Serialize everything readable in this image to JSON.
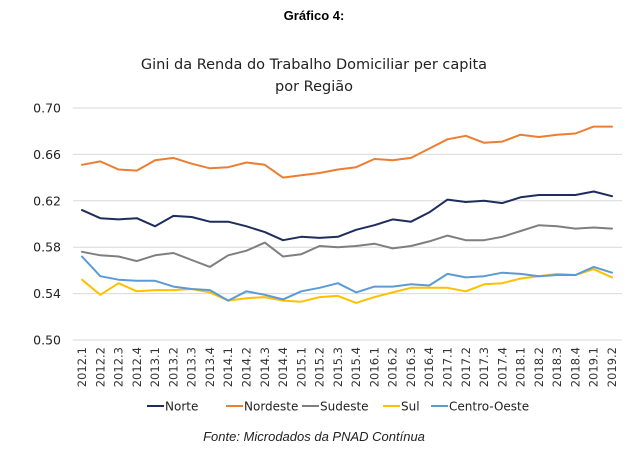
{
  "heading": "Gráfico 4:",
  "source": "Fonte: Microdados da PNAD Contínua",
  "chart_data": {
    "type": "line",
    "title": [
      "Gini da Renda do Trabalho Domiciliar per capita",
      "por Região"
    ],
    "xlabel": "",
    "ylabel": "",
    "ylim": [
      0.5,
      0.7
    ],
    "yticks": [
      "0.50",
      "0.54",
      "0.58",
      "0.62",
      "0.66",
      "0.70"
    ],
    "ytick_values": [
      0.5,
      0.54,
      0.58,
      0.62,
      0.66,
      0.7
    ],
    "grid": true,
    "legend_position": "bottom",
    "categories": [
      "2012.1",
      "2012.2",
      "2012.3",
      "2012.4",
      "2013.1",
      "2013.2",
      "2013.3",
      "2013.4",
      "2014.1",
      "2014.2",
      "2014.3",
      "2014.4",
      "2015.1",
      "2015.2",
      "2015.3",
      "2015.4",
      "2016.1",
      "2016.2",
      "2016.3",
      "2016.4",
      "2017.1",
      "2017.2",
      "2017.3",
      "2017.4",
      "2018.1",
      "2018.2",
      "2018.3",
      "2018.4",
      "2019.1",
      "2019.2"
    ],
    "series": [
      {
        "name": "Norte",
        "color": "#1f2d5c",
        "values": [
          0.612,
          0.605,
          0.604,
          0.605,
          0.598,
          0.607,
          0.606,
          0.602,
          0.602,
          0.598,
          0.593,
          0.586,
          0.589,
          0.588,
          0.589,
          0.595,
          0.599,
          0.604,
          0.602,
          0.61,
          0.621,
          0.619,
          0.62,
          0.618,
          0.623,
          0.625,
          0.625,
          0.625,
          0.628,
          0.624
        ]
      },
      {
        "name": "Nordeste",
        "color": "#ed7d31",
        "values": [
          0.651,
          0.654,
          0.647,
          0.646,
          0.655,
          0.657,
          0.652,
          0.648,
          0.649,
          0.653,
          0.651,
          0.64,
          0.642,
          0.644,
          0.647,
          0.649,
          0.656,
          0.655,
          0.657,
          0.665,
          0.673,
          0.676,
          0.67,
          0.671,
          0.677,
          0.675,
          0.677,
          0.678,
          0.684,
          0.684
        ]
      },
      {
        "name": "Sudeste",
        "color": "#7f7f7f",
        "values": [
          0.576,
          0.573,
          0.572,
          0.568,
          0.573,
          0.575,
          0.569,
          0.563,
          0.573,
          0.577,
          0.584,
          0.572,
          0.574,
          0.581,
          0.58,
          0.581,
          0.583,
          0.579,
          0.581,
          0.585,
          0.59,
          0.586,
          0.586,
          0.589,
          0.594,
          0.599,
          0.598,
          0.596,
          0.597,
          0.596
        ]
      },
      {
        "name": "Sul",
        "color": "#ffc000",
        "values": [
          0.552,
          0.539,
          0.549,
          0.542,
          0.543,
          0.543,
          0.544,
          0.541,
          0.534,
          0.536,
          0.537,
          0.534,
          0.533,
          0.537,
          0.538,
          0.532,
          0.537,
          0.541,
          0.545,
          0.545,
          0.545,
          0.542,
          0.548,
          0.549,
          0.553,
          0.555,
          0.557,
          0.556,
          0.561,
          0.554
        ]
      },
      {
        "name": "Centro-Oeste",
        "color": "#5b9bd5",
        "values": [
          0.572,
          0.555,
          0.552,
          0.551,
          0.551,
          0.546,
          0.544,
          0.543,
          0.534,
          0.542,
          0.539,
          0.535,
          0.542,
          0.545,
          0.549,
          0.541,
          0.546,
          0.546,
          0.548,
          0.547,
          0.557,
          0.554,
          0.555,
          0.558,
          0.557,
          0.555,
          0.556,
          0.556,
          0.563,
          0.558
        ]
      }
    ]
  }
}
